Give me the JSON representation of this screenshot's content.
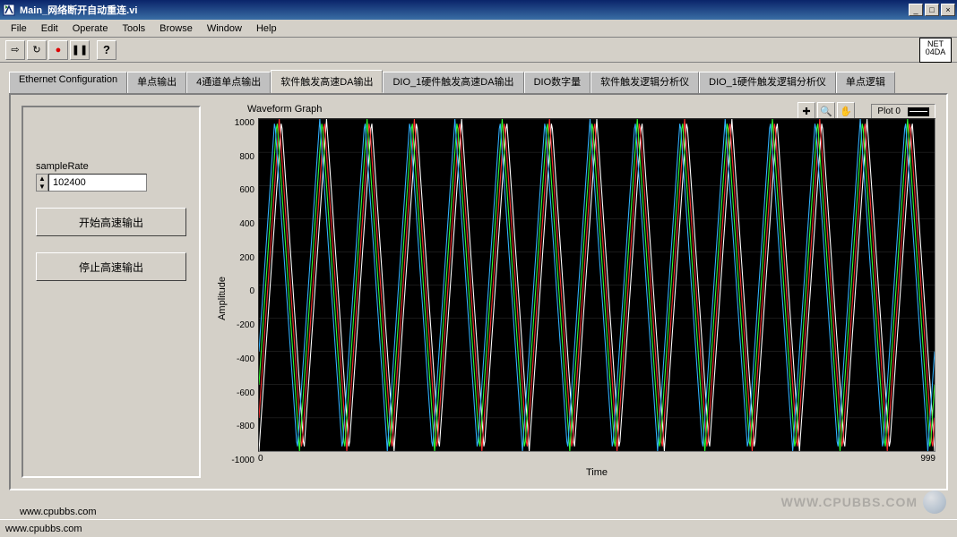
{
  "window": {
    "title": "Main_网络断开自动重连.vi",
    "status": "www.cpubbs.com",
    "watermark": "WWW.CPUBBS.COM"
  },
  "menu": [
    "File",
    "Edit",
    "Operate",
    "Tools",
    "Browse",
    "Window",
    "Help"
  ],
  "toolbar": {
    "run_arrow": "⇨",
    "run_cont": "↻",
    "record": "●",
    "pause": "❚❚",
    "help": "?",
    "net_l1": "NET",
    "net_l2": "04DA"
  },
  "tabs": [
    {
      "label": "Ethernet Configuration",
      "active": false
    },
    {
      "label": "单点输出",
      "active": false
    },
    {
      "label": "4通道单点输出",
      "active": false
    },
    {
      "label": "软件触发高速DA输出",
      "active": true
    },
    {
      "label": "DIO_1硬件触发高速DA输出",
      "active": false
    },
    {
      "label": "DIO数字量",
      "active": false
    },
    {
      "label": "软件触发逻辑分析仪",
      "active": false
    },
    {
      "label": "DIO_1硬件触发逻辑分析仪",
      "active": false
    },
    {
      "label": "单点逻辑",
      "active": false
    }
  ],
  "controls": {
    "sampleRate_label": "sampleRate",
    "sampleRate_value": "102400",
    "btn_start": "开始高速输出",
    "btn_stop": "停止高速输出"
  },
  "graph": {
    "title": "Waveform Graph",
    "plot_label": "Plot 0",
    "ylabel": "Amplitude",
    "xlabel": "Time",
    "yticks": [
      "1000",
      "800",
      "600",
      "400",
      "200",
      "0",
      "-200",
      "-400",
      "-600",
      "-800",
      "-1000"
    ],
    "xmin": "0",
    "xmax": "999",
    "background": "#000000",
    "grid_color": "#333333",
    "series": [
      {
        "color": "#ffffff",
        "amplitude": 1000,
        "cycles": 15,
        "phase": 0.0,
        "type": "triangle"
      },
      {
        "color": "#ff3030",
        "amplitude": 1000,
        "cycles": 15,
        "phase": 0.05,
        "type": "triangle"
      },
      {
        "color": "#30ff30",
        "amplitude": 1000,
        "cycles": 15,
        "phase": 0.1,
        "type": "triangle"
      },
      {
        "color": "#30b0ff",
        "amplitude": 1000,
        "cycles": 15,
        "phase": 0.15,
        "type": "triangle"
      }
    ],
    "xrange": 999,
    "yrange": [
      -1000,
      1000
    ]
  },
  "footer_link": "www.cpubbs.com"
}
